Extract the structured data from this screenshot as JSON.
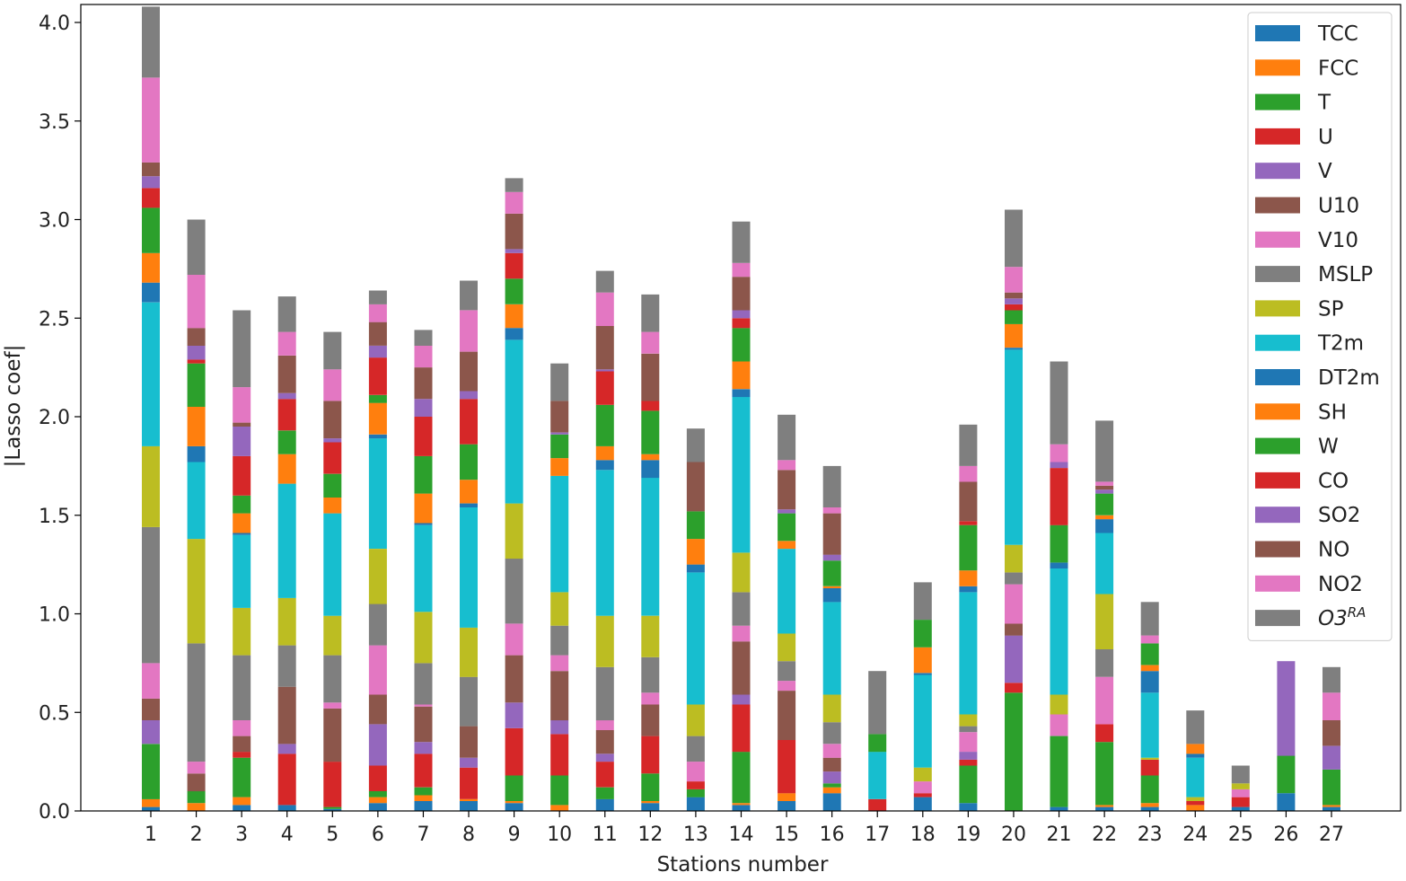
{
  "chart_data": {
    "type": "bar",
    "stacked": true,
    "xlabel": "Stations number",
    "ylabel": "|Lasso coef|",
    "ylim": [
      0,
      4.0
    ],
    "yticks": [
      "0.0",
      "0.5",
      "1.0",
      "1.5",
      "2.0",
      "2.5",
      "3.0",
      "3.5",
      "4.0"
    ],
    "categories": [
      "1",
      "2",
      "3",
      "4",
      "5",
      "6",
      "7",
      "8",
      "9",
      "10",
      "11",
      "12",
      "13",
      "14",
      "15",
      "16",
      "17",
      "18",
      "19",
      "20",
      "21",
      "22",
      "23",
      "24",
      "25",
      "26",
      "27"
    ],
    "legend_position": "top-right",
    "series": [
      {
        "name": "TCC",
        "color": "#1f77b4",
        "values": [
          0.02,
          0.0,
          0.03,
          0.03,
          0.01,
          0.04,
          0.05,
          0.05,
          0.04,
          0.0,
          0.06,
          0.04,
          0.07,
          0.03,
          0.05,
          0.09,
          0.0,
          0.07,
          0.04,
          0.0,
          0.02,
          0.02,
          0.02,
          0.0,
          0.02,
          0.09,
          0.02
        ]
      },
      {
        "name": "FCC",
        "color": "#ff7f0e",
        "values": [
          0.04,
          0.04,
          0.04,
          0.0,
          0.0,
          0.03,
          0.03,
          0.01,
          0.01,
          0.03,
          0.0,
          0.01,
          0.0,
          0.01,
          0.04,
          0.03,
          0.0,
          0.0,
          0.0,
          0.0,
          0.0,
          0.01,
          0.02,
          0.03,
          0.0,
          0.0,
          0.01
        ]
      },
      {
        "name": "T",
        "color": "#2ca02c",
        "values": [
          0.28,
          0.06,
          0.2,
          0.0,
          0.01,
          0.03,
          0.04,
          0.0,
          0.13,
          0.15,
          0.06,
          0.14,
          0.04,
          0.26,
          0.0,
          0.02,
          0.0,
          0.0,
          0.19,
          0.6,
          0.36,
          0.32,
          0.14,
          0.0,
          0.0,
          0.19,
          0.18
        ]
      },
      {
        "name": "U",
        "color": "#d62728",
        "values": [
          0.0,
          0.0,
          0.03,
          0.26,
          0.23,
          0.13,
          0.17,
          0.16,
          0.24,
          0.21,
          0.13,
          0.19,
          0.04,
          0.24,
          0.27,
          0.0,
          0.06,
          0.02,
          0.03,
          0.05,
          0.0,
          0.09,
          0.08,
          0.02,
          0.05,
          0.0,
          0.0
        ]
      },
      {
        "name": "V",
        "color": "#9467bd",
        "values": [
          0.12,
          0.0,
          0.0,
          0.05,
          0.0,
          0.21,
          0.06,
          0.05,
          0.13,
          0.07,
          0.04,
          0.0,
          0.0,
          0.05,
          0.0,
          0.06,
          0.0,
          0.0,
          0.04,
          0.24,
          0.0,
          0.0,
          0.0,
          0.0,
          0.0,
          0.48,
          0.12
        ]
      },
      {
        "name": "U10",
        "color": "#8c564b",
        "values": [
          0.11,
          0.09,
          0.08,
          0.29,
          0.27,
          0.15,
          0.18,
          0.16,
          0.24,
          0.25,
          0.12,
          0.16,
          0.0,
          0.27,
          0.25,
          0.07,
          0.0,
          0.0,
          0.0,
          0.06,
          0.0,
          0.0,
          0.0,
          0.0,
          0.0,
          0.0,
          0.13
        ]
      },
      {
        "name": "V10",
        "color": "#e377c2",
        "values": [
          0.18,
          0.06,
          0.08,
          0.0,
          0.03,
          0.25,
          0.01,
          0.0,
          0.16,
          0.08,
          0.05,
          0.06,
          0.1,
          0.08,
          0.05,
          0.07,
          0.0,
          0.06,
          0.1,
          0.2,
          0.11,
          0.24,
          0.0,
          0.0,
          0.04,
          0.0,
          0.14
        ]
      },
      {
        "name": "MSLP",
        "color": "#7f7f7f",
        "values": [
          0.69,
          0.6,
          0.33,
          0.21,
          0.24,
          0.21,
          0.21,
          0.25,
          0.33,
          0.15,
          0.27,
          0.18,
          0.13,
          0.17,
          0.1,
          0.11,
          0.0,
          0.0,
          0.03,
          0.06,
          0.0,
          0.14,
          0.0,
          0.0,
          0.0,
          0.0,
          0.13
        ]
      },
      {
        "name": "SP",
        "color": "#bcbd22",
        "values": [
          0.41,
          0.53,
          0.24,
          0.24,
          0.2,
          0.28,
          0.26,
          0.25,
          0.28,
          0.17,
          0.26,
          0.21,
          0.16,
          0.2,
          0.14,
          0.14,
          0.0,
          0.07,
          0.06,
          0.14,
          0.1,
          0.28,
          0.01,
          0.02,
          0.03,
          0.0,
          0.0
        ]
      },
      {
        "name": "T2m",
        "color": "#17becf",
        "values": [
          0.73,
          0.39,
          0.37,
          0.58,
          0.52,
          0.56,
          0.44,
          0.61,
          0.83,
          0.59,
          0.74,
          0.7,
          0.67,
          0.79,
          0.43,
          0.47,
          0.24,
          0.47,
          0.62,
          0.99,
          0.64,
          0.31,
          0.33,
          0.2,
          0.0,
          0.0,
          0.0
        ]
      },
      {
        "name": "DT2m",
        "color": "#1f77b4",
        "values": [
          0.1,
          0.08,
          0.01,
          0.0,
          0.0,
          0.02,
          0.01,
          0.02,
          0.06,
          0.0,
          0.05,
          0.09,
          0.04,
          0.04,
          0.0,
          0.07,
          0.0,
          0.01,
          0.03,
          0.01,
          0.03,
          0.07,
          0.11,
          0.02,
          0.0,
          0.0,
          0.0
        ]
      },
      {
        "name": "SH",
        "color": "#ff7f0e",
        "values": [
          0.15,
          0.2,
          0.1,
          0.15,
          0.08,
          0.16,
          0.15,
          0.12,
          0.12,
          0.09,
          0.07,
          0.03,
          0.13,
          0.14,
          0.04,
          0.01,
          0.0,
          0.13,
          0.08,
          0.12,
          0.0,
          0.02,
          0.03,
          0.05,
          0.0,
          0.0,
          0.0
        ]
      },
      {
        "name": "W",
        "color": "#2ca02c",
        "values": [
          0.23,
          0.22,
          0.09,
          0.12,
          0.12,
          0.04,
          0.19,
          0.18,
          0.13,
          0.12,
          0.21,
          0.22,
          0.14,
          0.17,
          0.14,
          0.13,
          0.09,
          0.14,
          0.23,
          0.07,
          0.19,
          0.11,
          0.11,
          0.0,
          0.0,
          0.0,
          0.0
        ]
      },
      {
        "name": "CO",
        "color": "#d62728",
        "values": [
          0.1,
          0.02,
          0.2,
          0.16,
          0.16,
          0.19,
          0.2,
          0.23,
          0.13,
          0.0,
          0.17,
          0.05,
          0.0,
          0.05,
          0.0,
          0.0,
          0.0,
          0.0,
          0.02,
          0.03,
          0.29,
          0.0,
          0.0,
          0.0,
          0.0,
          0.0,
          0.0
        ]
      },
      {
        "name": "SO2",
        "color": "#9467bd",
        "values": [
          0.06,
          0.07,
          0.15,
          0.03,
          0.02,
          0.06,
          0.09,
          0.04,
          0.02,
          0.01,
          0.01,
          0.0,
          0.0,
          0.04,
          0.02,
          0.03,
          0.0,
          0.0,
          0.0,
          0.03,
          0.03,
          0.02,
          0.0,
          0.0,
          0.0,
          0.0,
          0.0
        ]
      },
      {
        "name": "NO",
        "color": "#8c564b",
        "values": [
          0.07,
          0.09,
          0.02,
          0.19,
          0.19,
          0.12,
          0.16,
          0.2,
          0.18,
          0.16,
          0.22,
          0.24,
          0.25,
          0.17,
          0.2,
          0.21,
          0.0,
          0.0,
          0.2,
          0.03,
          0.0,
          0.02,
          0.0,
          0.0,
          0.0,
          0.0,
          0.0
        ]
      },
      {
        "name": "NO2",
        "color": "#e377c2",
        "values": [
          0.43,
          0.27,
          0.18,
          0.12,
          0.16,
          0.09,
          0.11,
          0.21,
          0.11,
          0.0,
          0.17,
          0.11,
          0.0,
          0.07,
          0.05,
          0.03,
          0.0,
          0.0,
          0.08,
          0.13,
          0.09,
          0.02,
          0.04,
          0.0,
          0.0,
          0.0,
          0.0
        ]
      },
      {
        "name": "O3",
        "label_base": "O3",
        "label_sup": "RA",
        "color": "#7f7f7f",
        "values": [
          0.36,
          0.28,
          0.39,
          0.18,
          0.19,
          0.07,
          0.08,
          0.15,
          0.07,
          0.19,
          0.11,
          0.19,
          0.17,
          0.21,
          0.23,
          0.21,
          0.32,
          0.19,
          0.21,
          0.29,
          0.42,
          0.31,
          0.17,
          0.17,
          0.09,
          0.0,
          0.0
        ]
      }
    ]
  }
}
